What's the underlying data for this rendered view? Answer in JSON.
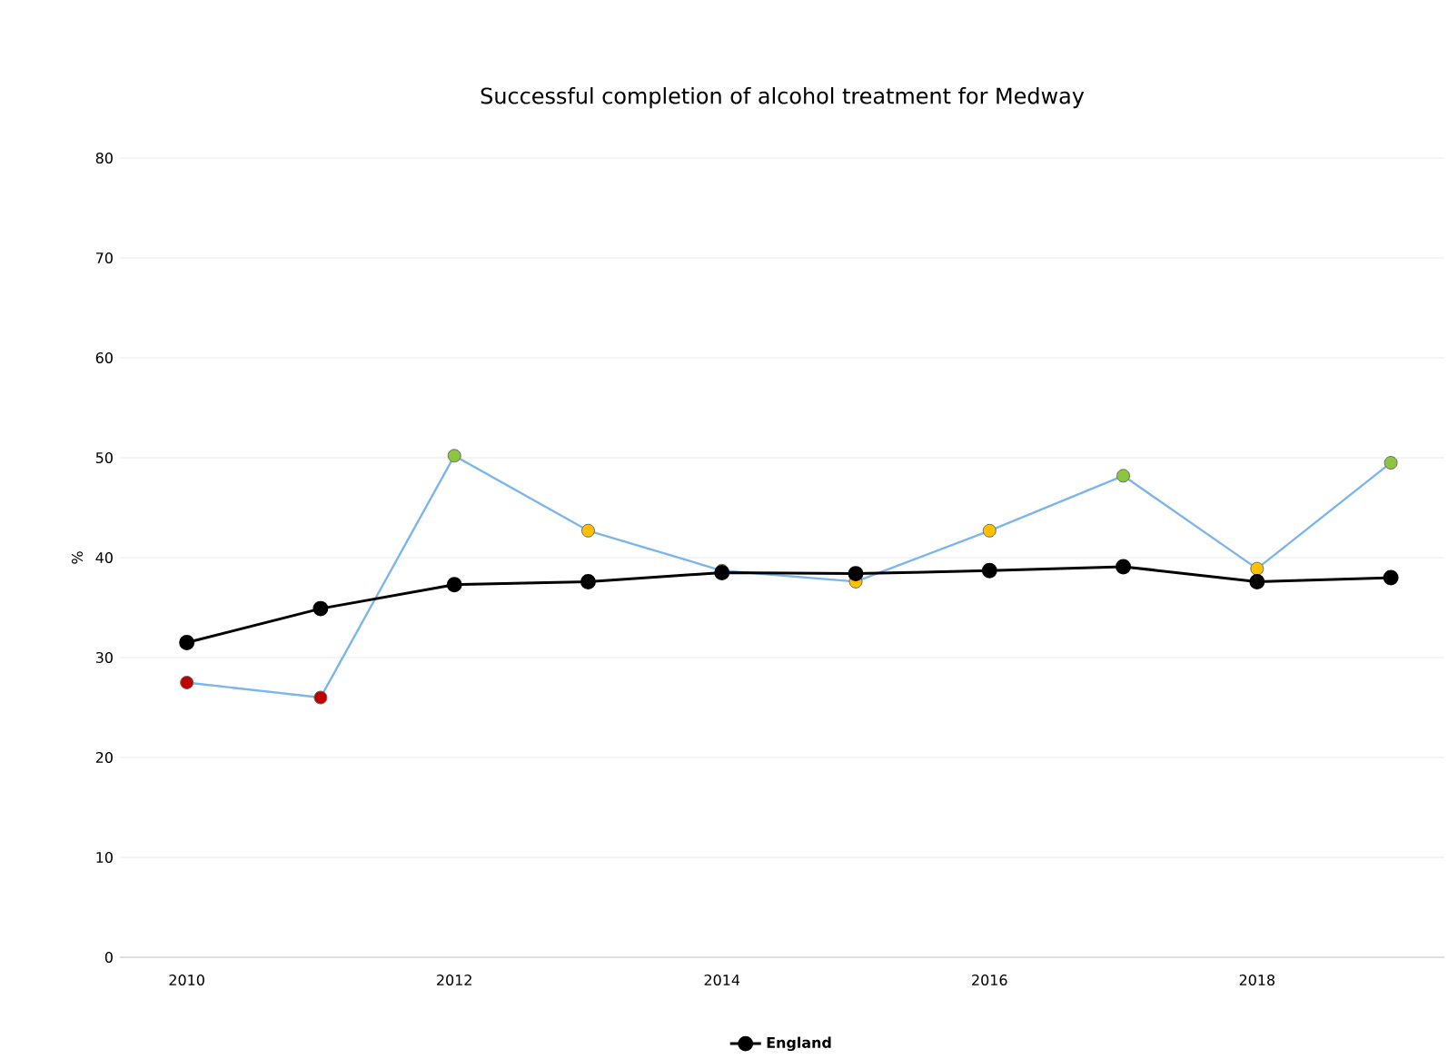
{
  "chart_data": {
    "type": "line",
    "title": "Successful completion of alcohol treatment for Medway",
    "ylabel": "%",
    "x": [
      2010,
      2011,
      2012,
      2013,
      2014,
      2015,
      2016,
      2017,
      2018,
      2019
    ],
    "series": [
      {
        "color": "#7cb5ec",
        "colors": [
          "#c00000",
          "#c00000",
          "#8cc63f",
          "#ffc000",
          "#ffc000",
          "#ffc000",
          "#ffc000",
          "#8cc63f",
          "#ffc000",
          "#8cc63f"
        ],
        "values": [
          27.5,
          26.0,
          50.2,
          42.7,
          38.7,
          37.6,
          42.7,
          48.2,
          38.9,
          49.5
        ]
      },
      {
        "name": "England",
        "color": "#000000",
        "values": [
          31.5,
          34.9,
          37.3,
          37.6,
          38.5,
          38.4,
          38.7,
          39.1,
          37.6,
          38.0
        ]
      }
    ],
    "xlim": [
      2009.5,
      2019.4
    ],
    "xticks": [
      2010,
      2012,
      2014,
      2016,
      2018
    ],
    "ylim": [
      0,
      80
    ],
    "yticks": [
      0,
      10,
      20,
      30,
      40,
      50,
      60,
      70,
      80
    ],
    "grid": "y",
    "legend": "bottom",
    "marker": "circle",
    "line_style": "solid"
  }
}
